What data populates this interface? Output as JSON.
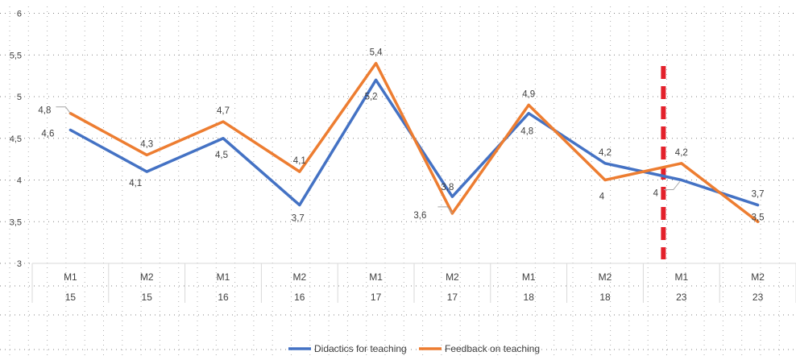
{
  "chart_data": {
    "type": "line",
    "title": "",
    "xlabel": "",
    "ylabel": "",
    "ylim": [
      3,
      6
    ],
    "y_ticks": [
      "3",
      "3,5",
      "4",
      "4,5",
      "5",
      "5,5",
      "6"
    ],
    "y_tick_values": [
      3,
      3.5,
      4,
      4.5,
      5,
      5.5,
      6
    ],
    "grid": "dotted",
    "legend_position": "bottom",
    "categories": [
      {
        "level1": "M1",
        "level2": "15"
      },
      {
        "level1": "M2",
        "level2": "15"
      },
      {
        "level1": "M1",
        "level2": "16"
      },
      {
        "level1": "M2",
        "level2": "16"
      },
      {
        "level1": "M1",
        "level2": "17"
      },
      {
        "level1": "M2",
        "level2": "17"
      },
      {
        "level1": "M1",
        "level2": "18"
      },
      {
        "level1": "M2",
        "level2": "18"
      },
      {
        "level1": "M1",
        "level2": "23"
      },
      {
        "level1": "M2",
        "level2": "23"
      }
    ],
    "series": [
      {
        "name": "Didactics for teaching",
        "color": "#4472C4",
        "values": [
          4.6,
          4.1,
          4.5,
          3.7,
          5.2,
          3.8,
          4.8,
          4.2,
          4.0,
          3.7
        ],
        "labels": [
          "4,6",
          "4,1",
          "4,5",
          "3,7",
          "5,2",
          "3,8",
          "4,8",
          "4,2",
          "4",
          "3,7"
        ]
      },
      {
        "name": "Feedback on teaching",
        "color": "#ED7D31",
        "values": [
          4.8,
          4.3,
          4.7,
          4.1,
          5.4,
          3.6,
          4.9,
          4.0,
          4.2,
          3.5
        ],
        "labels": [
          "4,8",
          "4,3",
          "4,7",
          "4,1",
          "5,4",
          "3,6",
          "4,9",
          "4",
          "4,2",
          "3,5"
        ]
      }
    ],
    "annotations": [
      {
        "type": "vertical-dashed-line",
        "color": "#E3212B",
        "between_categories": [
          7,
          8
        ]
      }
    ]
  }
}
